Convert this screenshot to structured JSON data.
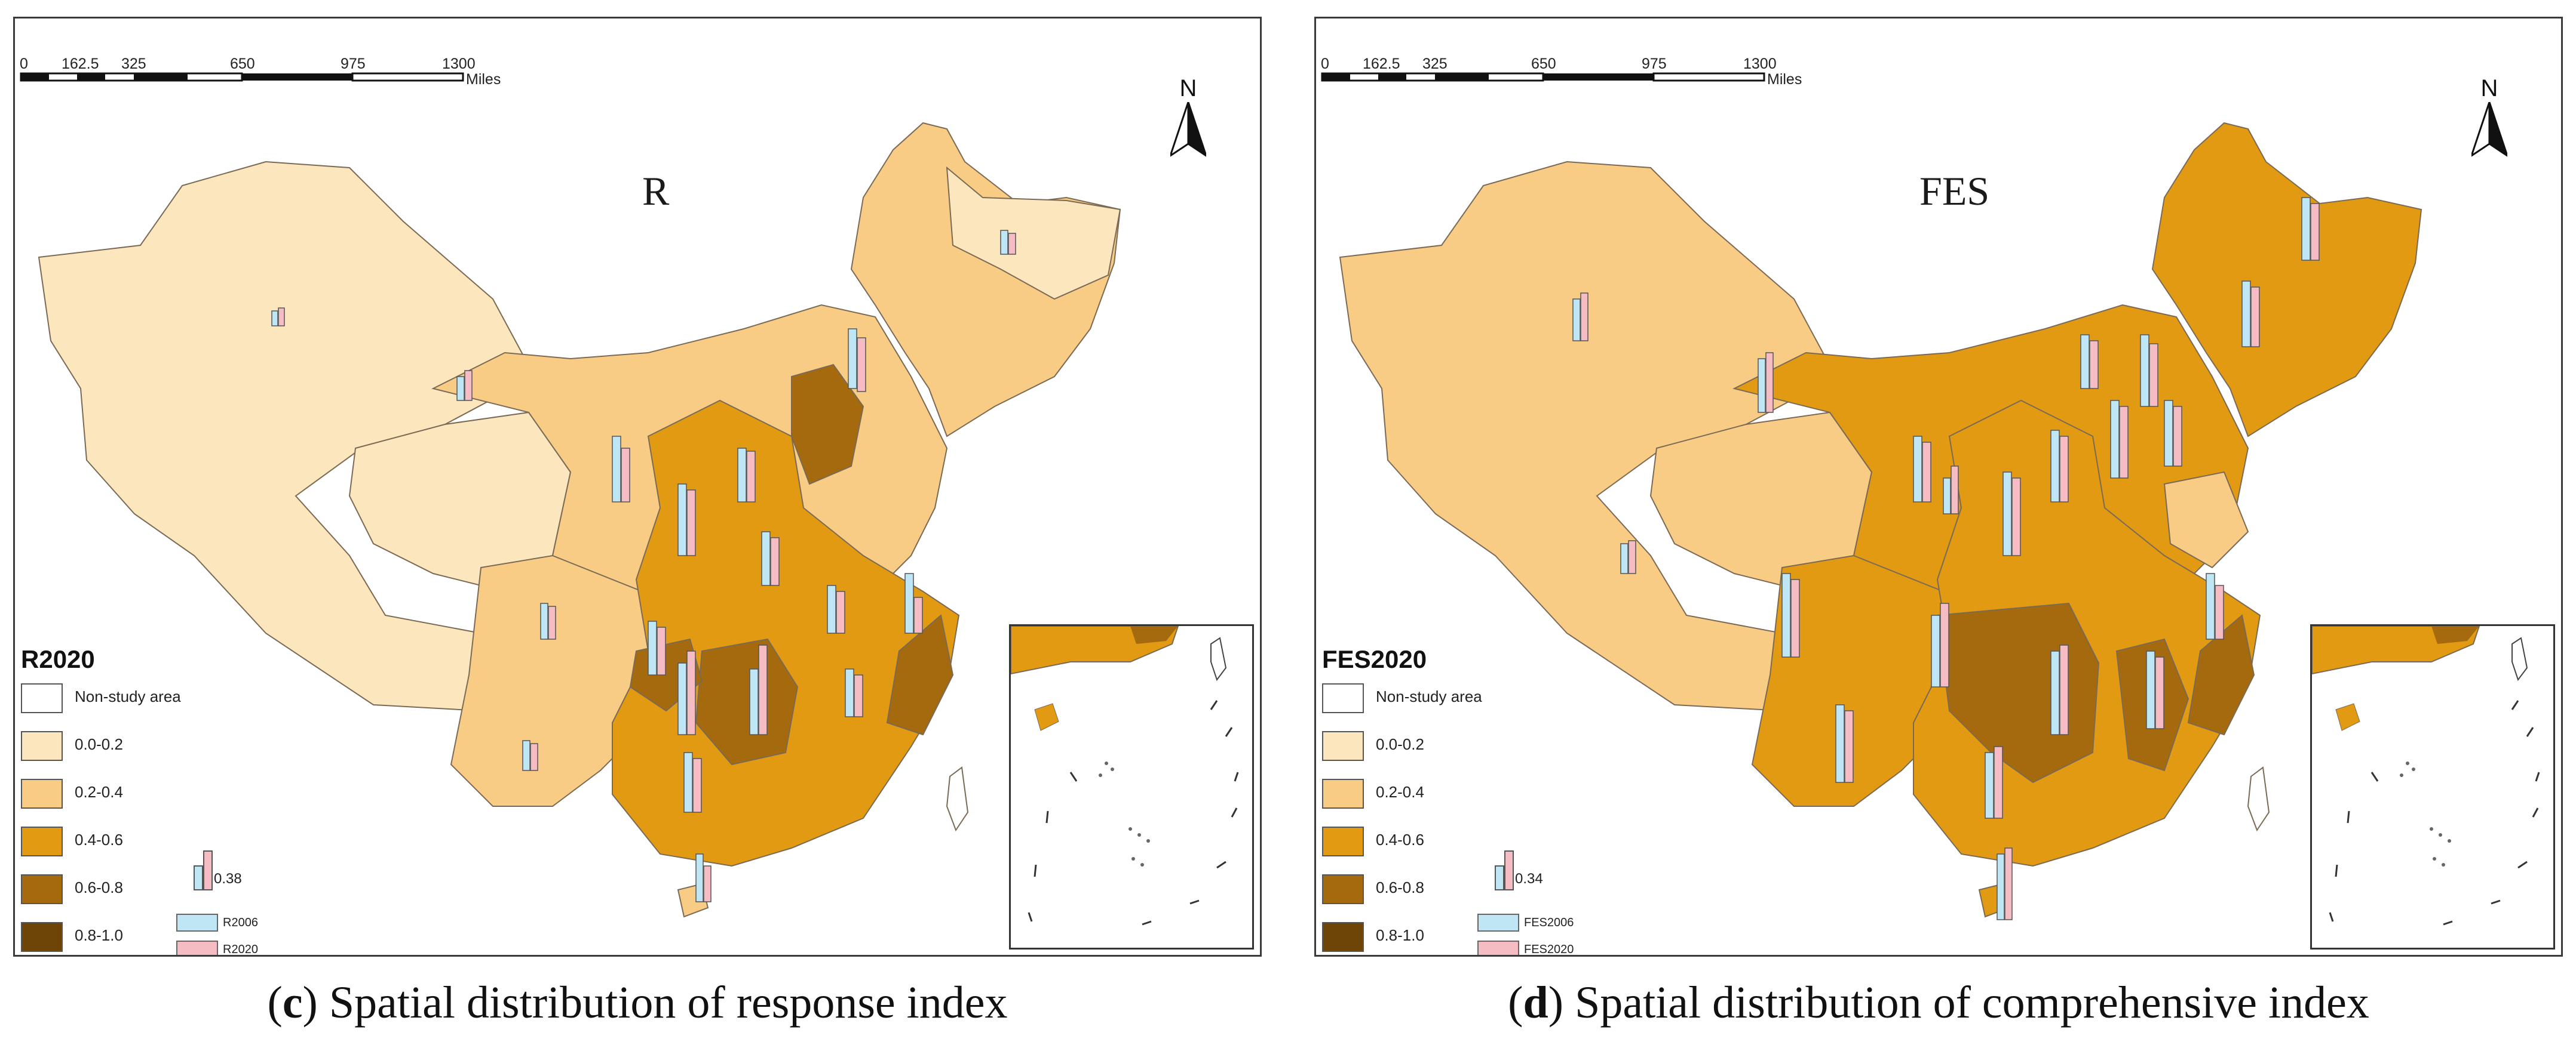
{
  "panels": [
    {
      "map_title": "R",
      "legend_title": "R2020",
      "bar_key_value": "0.38",
      "bar_key_series": [
        "R2006",
        "R2020"
      ],
      "caption_letter": "c",
      "caption_text": "Spatial distribution of response index"
    },
    {
      "map_title": "FES",
      "legend_title": "FES2020",
      "bar_key_value": "0.34",
      "bar_key_series": [
        "FES2006",
        "FES2020"
      ],
      "caption_letter": "d",
      "caption_text": "Spatial distribution of comprehensive index"
    }
  ],
  "scale_bar": {
    "ticks": [
      "0",
      "162.5",
      "325",
      "650",
      "975",
      "1300"
    ],
    "unit": "Miles"
  },
  "north_arrow": "N",
  "legend_classes": [
    {
      "label": "Non-study area",
      "color": "#ffffff"
    },
    {
      "label": "0.0-0.2",
      "color": "#fbe6bd"
    },
    {
      "label": "0.2-0.4",
      "color": "#f8cc85"
    },
    {
      "label": "0.4-0.6",
      "color": "#e29a12"
    },
    {
      "label": "0.6-0.8",
      "color": "#a56a0e"
    },
    {
      "label": "0.8-1.0",
      "color": "#6e4506"
    }
  ],
  "bar_colors": {
    "y2006": "#bfe6f5",
    "y2020": "#f6bcc3"
  }
}
